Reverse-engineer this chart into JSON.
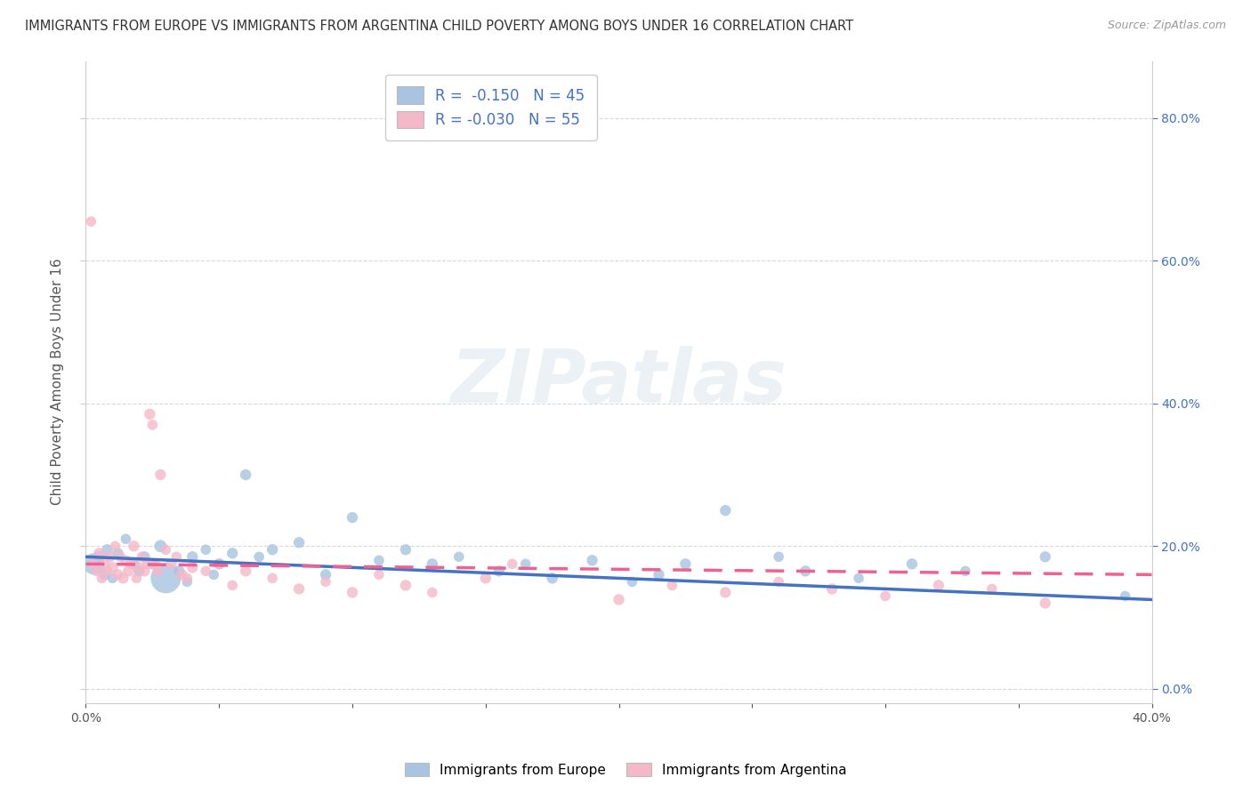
{
  "title": "IMMIGRANTS FROM EUROPE VS IMMIGRANTS FROM ARGENTINA CHILD POVERTY AMONG BOYS UNDER 16 CORRELATION CHART",
  "source": "Source: ZipAtlas.com",
  "ylabel": "Child Poverty Among Boys Under 16",
  "xlim": [
    0.0,
    0.4
  ],
  "ylim": [
    -0.02,
    0.88
  ],
  "background_color": "#ffffff",
  "watermark_text": "ZIPatlas",
  "color_europe": "#a8c4e0",
  "color_argentina": "#f4b8c8",
  "color_europe_line": "#4472c4",
  "color_argentina_line": "#f06090",
  "grid_color": "#d0d0d0",
  "legend_label_europe": "Immigrants from Europe",
  "legend_label_argentina": "Immigrants from Argentina",
  "europe_x": [
    0.003,
    0.005,
    0.007,
    0.008,
    0.01,
    0.012,
    0.015,
    0.018,
    0.02,
    0.022,
    0.025,
    0.028,
    0.03,
    0.035,
    0.038,
    0.04,
    0.045,
    0.048,
    0.05,
    0.055,
    0.06,
    0.065,
    0.07,
    0.08,
    0.09,
    0.1,
    0.11,
    0.12,
    0.13,
    0.14,
    0.155,
    0.165,
    0.175,
    0.19,
    0.205,
    0.215,
    0.225,
    0.24,
    0.26,
    0.27,
    0.29,
    0.31,
    0.33,
    0.36,
    0.39
  ],
  "europe_y": [
    0.175,
    0.185,
    0.16,
    0.195,
    0.155,
    0.19,
    0.21,
    0.175,
    0.165,
    0.185,
    0.175,
    0.2,
    0.155,
    0.165,
    0.15,
    0.185,
    0.195,
    0.16,
    0.175,
    0.19,
    0.3,
    0.185,
    0.195,
    0.205,
    0.16,
    0.24,
    0.18,
    0.195,
    0.175,
    0.185,
    0.165,
    0.175,
    0.155,
    0.18,
    0.15,
    0.16,
    0.175,
    0.25,
    0.185,
    0.165,
    0.155,
    0.175,
    0.165,
    0.185,
    0.13
  ],
  "europe_s": [
    300,
    100,
    80,
    80,
    70,
    80,
    70,
    80,
    80,
    80,
    80,
    100,
    600,
    80,
    70,
    80,
    70,
    70,
    80,
    80,
    80,
    70,
    80,
    80,
    80,
    80,
    70,
    80,
    80,
    70,
    80,
    70,
    80,
    80,
    70,
    80,
    80,
    80,
    70,
    80,
    70,
    80,
    70,
    80,
    70
  ],
  "argentina_x": [
    0.002,
    0.003,
    0.004,
    0.005,
    0.006,
    0.007,
    0.008,
    0.009,
    0.01,
    0.011,
    0.012,
    0.013,
    0.014,
    0.015,
    0.016,
    0.017,
    0.018,
    0.019,
    0.02,
    0.021,
    0.022,
    0.023,
    0.024,
    0.025,
    0.026,
    0.027,
    0.028,
    0.03,
    0.032,
    0.034,
    0.036,
    0.038,
    0.04,
    0.045,
    0.05,
    0.055,
    0.06,
    0.07,
    0.08,
    0.09,
    0.1,
    0.11,
    0.12,
    0.13,
    0.15,
    0.16,
    0.2,
    0.22,
    0.24,
    0.26,
    0.28,
    0.3,
    0.32,
    0.34,
    0.36
  ],
  "argentina_y": [
    0.655,
    0.175,
    0.165,
    0.19,
    0.155,
    0.175,
    0.165,
    0.185,
    0.17,
    0.2,
    0.16,
    0.185,
    0.155,
    0.18,
    0.165,
    0.175,
    0.2,
    0.155,
    0.17,
    0.185,
    0.165,
    0.175,
    0.385,
    0.37,
    0.175,
    0.165,
    0.3,
    0.195,
    0.175,
    0.185,
    0.16,
    0.155,
    0.17,
    0.165,
    0.175,
    0.145,
    0.165,
    0.155,
    0.14,
    0.15,
    0.135,
    0.16,
    0.145,
    0.135,
    0.155,
    0.175,
    0.125,
    0.145,
    0.135,
    0.15,
    0.14,
    0.13,
    0.145,
    0.14,
    0.12
  ],
  "argentina_s": [
    70,
    70,
    70,
    80,
    70,
    80,
    70,
    80,
    80,
    70,
    80,
    70,
    80,
    70,
    80,
    70,
    80,
    70,
    80,
    70,
    80,
    70,
    80,
    70,
    80,
    70,
    80,
    70,
    80,
    70,
    80,
    70,
    80,
    70,
    80,
    70,
    80,
    70,
    80,
    70,
    80,
    70,
    80,
    70,
    80,
    70,
    80,
    70,
    80,
    70,
    80,
    70,
    80,
    70,
    80
  ],
  "eu_trend_x0": 0.0,
  "eu_trend_x1": 0.4,
  "eu_trend_y0": 0.185,
  "eu_trend_y1": 0.125,
  "ar_trend_x0": 0.0,
  "ar_trend_x1": 0.4,
  "ar_trend_y0": 0.175,
  "ar_trend_y1": 0.16
}
